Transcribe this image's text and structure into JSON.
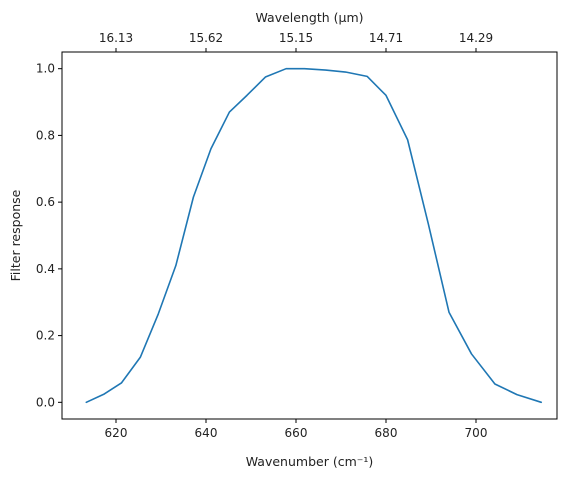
{
  "chart_data": {
    "type": "line",
    "title": "",
    "xlabel": "Wavenumber (cm⁻¹)",
    "ylabel": "Filter response",
    "top_xlabel": "Wavelength (μm)",
    "xlim": [
      608,
      718
    ],
    "ylim": [
      -0.05,
      1.05
    ],
    "grid": false,
    "legend": "none",
    "x_ticks": [
      620,
      640,
      660,
      680,
      700
    ],
    "x_tick_labels": [
      "620",
      "640",
      "660",
      "680",
      "700"
    ],
    "y_ticks": [
      0.0,
      0.2,
      0.4,
      0.6,
      0.8,
      1.0
    ],
    "y_tick_labels": [
      "0.0",
      "0.2",
      "0.4",
      "0.6",
      "0.8",
      "1.0"
    ],
    "top_ticks_wavenumber": [
      620,
      640,
      660,
      680,
      700
    ],
    "top_tick_labels": [
      "16.13",
      "15.62",
      "15.15",
      "14.71",
      "14.29"
    ],
    "series": [
      {
        "color": "#1f77b4",
        "x": [
          613.4,
          617.4,
          621.2,
          625.4,
          629.4,
          633.3,
          637.2,
          641.1,
          645.2,
          649.1,
          653.2,
          657.8,
          661.9,
          666.6,
          671.0,
          675.8,
          680.0,
          684.8,
          689.4,
          694.0,
          699.0,
          704.2,
          709.1,
          714.5
        ],
        "y": [
          0.0,
          0.025,
          0.058,
          0.135,
          0.265,
          0.41,
          0.615,
          0.76,
          0.87,
          0.92,
          0.975,
          1.0,
          1.0,
          0.996,
          0.99,
          0.977,
          0.92,
          0.787,
          0.535,
          0.27,
          0.145,
          0.055,
          0.023,
          0.0
        ]
      }
    ]
  }
}
